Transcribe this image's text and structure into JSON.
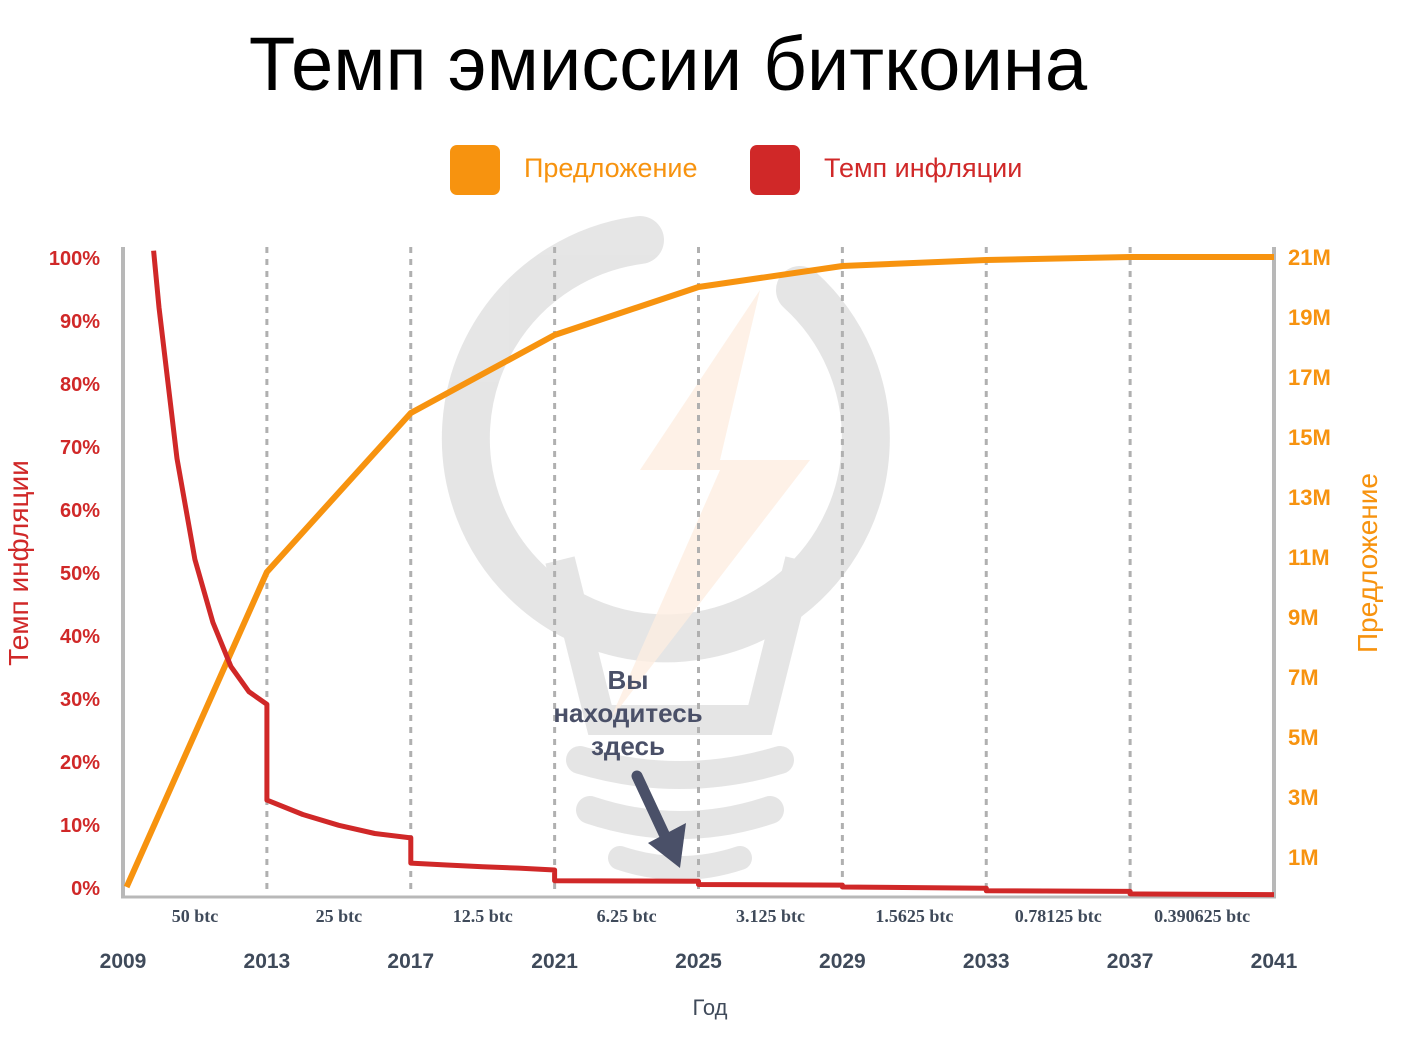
{
  "colors": {
    "supply": "#f7930f",
    "inflation": "#d02828",
    "axis": "#b8b8b8",
    "annotation": "#4a5068",
    "text_dark": "#3f4a5a"
  },
  "chart_data": {
    "type": "line",
    "title": "Темп эмиссии биткоина",
    "legend": [
      {
        "label": "Предложение",
        "color": "#f7930f"
      },
      {
        "label": "Темп инфляции",
        "color": "#d02828"
      }
    ],
    "legend_position": "top-center",
    "xlabel": "Год",
    "ylabel_left": "Темп инфляции",
    "ylabel_right": "Предложение",
    "x_ticks": [
      "2009",
      "2013",
      "2017",
      "2021",
      "2025",
      "2029",
      "2033",
      "2037",
      "2041"
    ],
    "xlim": [
      2009,
      2041
    ],
    "left_ticks": [
      "0%",
      "10%",
      "20%",
      "30%",
      "40%",
      "50%",
      "60%",
      "70%",
      "80%",
      "90%",
      "100%"
    ],
    "ylim_left": [
      0,
      100
    ],
    "right_ticks": [
      "1M",
      "3M",
      "5M",
      "7M",
      "9M",
      "11M",
      "13M",
      "15M",
      "17M",
      "19M",
      "21M"
    ],
    "ylim_right": [
      0,
      21
    ],
    "grid": "vertical dashed at halvings",
    "block_rewards": [
      "50 btc",
      "25 btc",
      "12.5 btc",
      "6.25 btc",
      "3.125 btc",
      "1.5625 btc",
      "0.78125 btc",
      "0.390625 btc"
    ],
    "series": [
      {
        "name": "Предложение",
        "axis": "right",
        "unit": "M",
        "x": [
          2009.1,
          2013,
          2017,
          2021,
          2025,
          2029,
          2033,
          2037,
          2041
        ],
        "y": [
          0,
          10.5,
          15.8,
          18.4,
          20.0,
          20.7,
          20.9,
          21.0,
          21.0
        ]
      },
      {
        "name": "Темп инфляции",
        "axis": "left",
        "unit": "%",
        "x": [
          2009.85,
          2010,
          2010.5,
          2011,
          2011.5,
          2012,
          2012.5,
          2013,
          2013,
          2014,
          2015,
          2016,
          2017,
          2017,
          2018,
          2019,
          2020,
          2021,
          2021,
          2025,
          2025,
          2029,
          2029,
          2033,
          2033,
          2037,
          2037,
          2041
        ],
        "y": [
          101,
          92,
          68,
          52,
          42,
          35,
          31,
          29,
          13.8,
          11.5,
          9.8,
          8.5,
          7.8,
          3.8,
          3.5,
          3.2,
          3.0,
          2.7,
          1.0,
          0.9,
          0.4,
          0.3,
          0.0,
          -0.2,
          -0.6,
          -0.7,
          -1.1,
          -1.2
        ]
      }
    ],
    "annotation": {
      "text": "Вы находитесь здесь",
      "lines": [
        "Вы",
        "находитесь",
        "здесь"
      ],
      "x": 2024.5
    }
  }
}
